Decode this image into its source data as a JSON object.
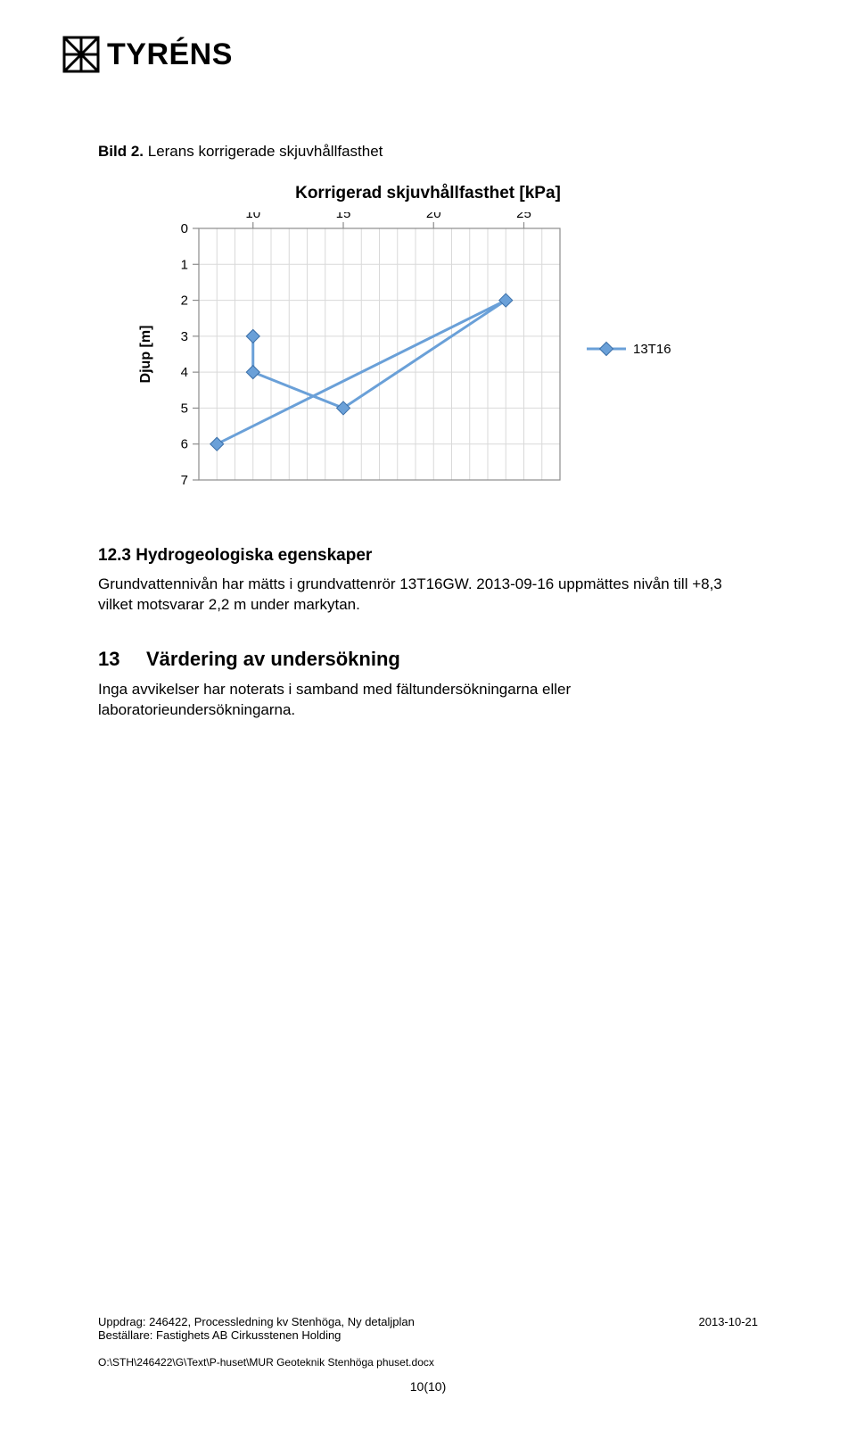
{
  "logo": {
    "text": "TYRÉNS"
  },
  "caption": {
    "bold": "Bild 2.",
    "rest": " Lerans korrigerade skjuvhållfasthet"
  },
  "chart": {
    "type": "line",
    "title": "Korrigerad skjuvhållfasthet [kPa]",
    "series_name": "13T16",
    "xlabel": "",
    "ylabel": "Djup [m]",
    "x_ticks": [
      10,
      15,
      20,
      25
    ],
    "x_minor_step": 1,
    "y_ticks": [
      0,
      1,
      2,
      3,
      4,
      5,
      6,
      7
    ],
    "y_minor_step": 1,
    "xlim": [
      7,
      27
    ],
    "ylim": [
      0,
      7
    ],
    "points": [
      {
        "x": 10,
        "y": 3
      },
      {
        "x": 10,
        "y": 4
      },
      {
        "x": 15,
        "y": 5
      },
      {
        "x": 24,
        "y": 2
      },
      {
        "x": 8,
        "y": 6
      }
    ],
    "line_color": "#6aa0d8",
    "line_width": 3,
    "marker_fill": "#6aa0d8",
    "marker_stroke": "#3b6fa8",
    "marker_size": 9,
    "grid_color": "#d9d9d9",
    "axis_color": "#8c8c8c",
    "tick_color": "#8c8c8c",
    "background_color": "#ffffff",
    "legend_line_color": "#6aa0d8",
    "legend_marker_color": "#6aa0d8",
    "label_fontsize": 15,
    "tick_fontsize": 15,
    "ylabel_fontsize": 16,
    "title_fontsize": 19
  },
  "section_12_3": {
    "heading": "12.3 Hydrogeologiska egenskaper",
    "body": "Grundvattennivån har mätts i grundvattenrör 13T16GW. 2013-09-16 uppmättes nivån till +8,3 vilket motsvarar 2,2 m under markytan."
  },
  "section_13": {
    "num": "13",
    "title": "Värdering av undersökning",
    "body": "Inga avvikelser har noterats i samband med fältundersökningarna eller laboratorieundersökningarna."
  },
  "footer": {
    "line1": "Uppdrag: 246422, Processledning kv Stenhöga, Ny detaljplan",
    "line2": "Beställare: Fastighets AB Cirkusstenen Holding",
    "date": "2013-10-21",
    "path": "O:\\STH\\246422\\G\\Text\\P-huset\\MUR Geoteknik Stenhöga phuset.docx",
    "page": "10(10)"
  }
}
